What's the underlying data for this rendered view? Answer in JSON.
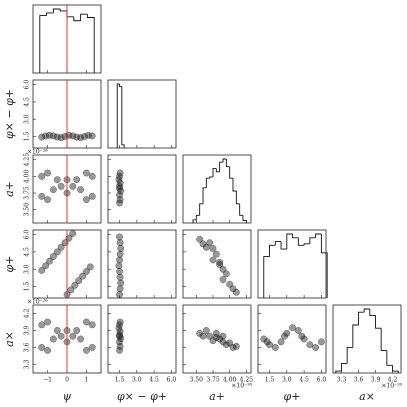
{
  "chart_data": {
    "type": "corner",
    "truth": {
      "parameter": 0,
      "value": 0,
      "color": "#e02020"
    },
    "mark_color": "#1a1a1a",
    "parameters": [
      {
        "label": "ψ",
        "lim": [
          -1.75,
          1.75
        ],
        "ticks": [
          {
            "value": -1,
            "label": "−1"
          },
          0,
          1
        ]
      },
      {
        "label": "φ× − φ+",
        "lim": [
          0.5,
          6.4
        ],
        "ticks": [
          1.5,
          {
            "value": 3,
            "label": "3.0"
          },
          4.5,
          {
            "value": 6,
            "label": "6.0"
          }
        ]
      },
      {
        "label": "a+",
        "lim": [
          3.3,
          4.32
        ],
        "ticks": [
          {
            "value": 3.5,
            "label": "3.50"
          },
          3.75,
          {
            "value": 4,
            "label": "4.00"
          },
          4.25
        ],
        "offset": "×10⁻²⁶"
      },
      {
        "label": "φ+",
        "lim": [
          0.5,
          6.4
        ],
        "ticks": [
          1.5,
          {
            "value": 3,
            "label": "3.0"
          },
          4.5,
          {
            "value": 6,
            "label": "6.0"
          }
        ]
      },
      {
        "label": "a×",
        "lim": [
          3.15,
          4.35
        ],
        "ticks": [
          3.3,
          3.6,
          3.9,
          4.2
        ],
        "offset": "×10⁻²⁶"
      }
    ],
    "histograms": [
      {
        "bins": [
          -1.4,
          -1.05,
          -0.7,
          -0.35,
          0,
          0.35,
          0.7,
          1.05,
          1.4
        ],
        "counts": [
          88,
          92,
          98,
          95,
          86,
          80,
          90,
          85
        ]
      },
      {
        "bins": [
          1.3,
          1.5,
          1.7,
          1.9
        ],
        "counts": [
          100,
          96,
          5
        ]
      },
      {
        "bins": [
          3.45,
          3.5,
          3.55,
          3.6,
          3.65,
          3.7,
          3.75,
          3.8,
          3.85,
          3.9,
          3.95,
          4.0,
          4.05,
          4.1,
          4.15,
          4.2,
          4.25
        ],
        "counts": [
          5,
          12,
          30,
          55,
          70,
          72,
          85,
          80,
          95,
          100,
          88,
          70,
          50,
          30,
          12,
          4
        ]
      },
      {
        "bins": [
          1,
          1.5,
          2,
          2.5,
          3,
          3.5,
          4,
          4.5,
          5,
          5.5,
          6,
          6.5
        ],
        "counts": [
          55,
          70,
          75,
          65,
          85,
          80,
          70,
          72,
          80,
          85,
          60
        ]
      },
      {
        "bins": [
          3.2,
          3.3,
          3.4,
          3.5,
          3.6,
          3.7,
          3.8,
          3.9,
          4.0,
          4.1,
          4.2,
          4.3
        ],
        "counts": [
          3,
          15,
          40,
          75,
          95,
          100,
          90,
          70,
          35,
          12,
          3
        ]
      }
    ],
    "pairs": [
      {
        "xp": 0,
        "yp": 1,
        "x": [
          -1.3,
          -1.1,
          -0.9,
          -0.7,
          -0.5,
          -0.3,
          -0.1,
          0.1,
          0.3,
          0.5,
          0.7,
          0.9,
          1.1,
          1.3
        ],
        "y": [
          1.45,
          1.55,
          1.6,
          1.55,
          1.45,
          1.4,
          1.5,
          1.6,
          1.55,
          1.45,
          1.4,
          1.5,
          1.6,
          1.55
        ]
      },
      {
        "xp": 0,
        "yp": 2,
        "x": [
          -1.3,
          -1.3,
          -1.0,
          -1.0,
          -0.7,
          -0.5,
          -0.3,
          0.3,
          0.5,
          0.7,
          1.0,
          1.0,
          1.3,
          1.3,
          0,
          0
        ],
        "y": [
          3.7,
          4.0,
          3.65,
          4.05,
          3.8,
          3.95,
          3.85,
          3.85,
          3.95,
          3.8,
          3.65,
          4.05,
          3.7,
          4.0,
          3.75,
          3.95
        ]
      },
      {
        "xp": 1,
        "yp": 2,
        "x": [
          1.5,
          1.55,
          1.5,
          1.6,
          1.5,
          1.55,
          1.45,
          1.5,
          1.55,
          1.5
        ],
        "y": [
          3.6,
          3.65,
          3.72,
          3.78,
          3.85,
          3.9,
          3.95,
          4.0,
          4.05,
          3.82
        ]
      },
      {
        "xp": 0,
        "yp": 3,
        "x": [
          -1.3,
          -1.1,
          -0.9,
          -0.7,
          -0.5,
          -0.3,
          -0.1,
          0.1,
          0.3,
          0.0,
          0.2,
          0.4,
          0.6,
          0.8,
          1.0,
          1.2
        ],
        "y": [
          2.9,
          3.3,
          3.7,
          4.1,
          4.5,
          4.9,
          5.3,
          5.7,
          6.1,
          0.8,
          1.2,
          1.6,
          2.0,
          2.4,
          2.8,
          3.2
        ]
      },
      {
        "xp": 1,
        "yp": 3,
        "x": [
          1.5,
          1.55,
          1.6,
          1.55,
          1.5,
          1.45,
          1.5,
          1.55,
          1.6,
          1.55,
          1.5
        ],
        "y": [
          0.8,
          1.3,
          1.8,
          2.3,
          2.8,
          3.3,
          3.8,
          4.3,
          4.8,
          5.3,
          5.8
        ]
      },
      {
        "xp": 2,
        "yp": 3,
        "x": [
          3.55,
          3.6,
          3.7,
          3.75,
          3.8,
          3.75,
          3.85,
          3.9,
          3.95,
          3.9,
          4.0,
          4.05,
          4.1,
          3.65,
          3.85
        ],
        "y": [
          5.6,
          5.2,
          5.3,
          4.8,
          4.3,
          3.8,
          3.4,
          3.0,
          2.6,
          2.1,
          1.7,
          1.3,
          1.0,
          4.9,
          3.6
        ]
      },
      {
        "xp": 0,
        "yp": 4,
        "x": [
          -1.3,
          -1.3,
          -1.0,
          -1.0,
          -0.7,
          -0.5,
          -0.3,
          0.3,
          0.5,
          0.7,
          1.0,
          1.0,
          1.3,
          1.3,
          0,
          0
        ],
        "y": [
          3.6,
          4.0,
          3.55,
          4.05,
          3.75,
          3.9,
          3.8,
          3.8,
          3.9,
          3.75,
          3.55,
          4.05,
          3.6,
          4.0,
          3.7,
          3.9
        ]
      },
      {
        "xp": 1,
        "yp": 4,
        "x": [
          1.5,
          1.55,
          1.5,
          1.6,
          1.5,
          1.55,
          1.45,
          1.5,
          1.55,
          1.5
        ],
        "y": [
          3.55,
          3.62,
          3.7,
          3.76,
          3.82,
          3.88,
          3.94,
          4.0,
          4.05,
          3.8
        ]
      },
      {
        "xp": 2,
        "yp": 4,
        "x": [
          3.55,
          3.65,
          3.7,
          3.8,
          3.85,
          3.9,
          4.0,
          4.05,
          3.75,
          3.95,
          3.6,
          3.8,
          3.9,
          4.1
        ],
        "y": [
          3.85,
          3.9,
          3.8,
          3.78,
          3.75,
          3.7,
          3.68,
          3.6,
          3.72,
          3.65,
          3.8,
          3.85,
          3.8,
          3.62
        ]
      },
      {
        "xp": 3,
        "yp": 4,
        "x": [
          1.0,
          1.5,
          2.0,
          2.5,
          3.0,
          3.5,
          4.0,
          4.5,
          5.0,
          5.5,
          6.0,
          1.3,
          2.8,
          4.3
        ],
        "y": [
          3.75,
          3.65,
          3.6,
          3.7,
          3.85,
          3.95,
          3.9,
          3.75,
          3.65,
          3.6,
          3.7,
          3.7,
          3.8,
          3.8
        ]
      }
    ]
  }
}
